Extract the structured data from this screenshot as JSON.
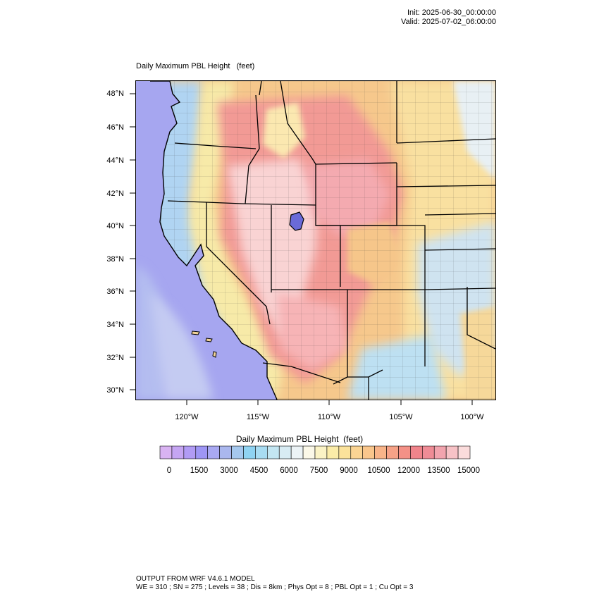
{
  "header": {
    "init": "Init: 2025-06-30_00:00:00",
    "valid": "Valid: 2025-07-02_06:00:00"
  },
  "map": {
    "title": "Daily Maximum PBL Height   (feet)",
    "lat_labels": [
      "48°N",
      "46°N",
      "44°N",
      "42°N",
      "40°N",
      "38°N",
      "36°N",
      "34°N",
      "32°N",
      "30°N"
    ],
    "lon_labels": [
      "120°W",
      "115°W",
      "110°W",
      "105°W",
      "100°W"
    ],
    "lat_range": [
      29.5,
      48.8
    ],
    "lon_range": [
      -123.7,
      -98.4
    ]
  },
  "colorbar": {
    "title": "Daily Maximum PBL Height  (feet)",
    "tick_labels": [
      "0",
      "1500",
      "3000",
      "4500",
      "6000",
      "7500",
      "9000",
      "10500",
      "12000",
      "13500",
      "15000"
    ],
    "colors": [
      "#d9b3f2",
      "#c5a5f2",
      "#b19bf5",
      "#9e96f5",
      "#a9a9f2",
      "#aab7ee",
      "#a5c8ee",
      "#8fd3f2",
      "#a8dcf2",
      "#c3e6f2",
      "#d8ecf4",
      "#ecf3f6",
      "#fbf8e8",
      "#fbf3c5",
      "#fbeca8",
      "#fbe29b",
      "#fbd493",
      "#f9c68c",
      "#f8b489",
      "#f6a287",
      "#f49187",
      "#f0848b",
      "#ef8c96",
      "#f2a4ae",
      "#f7c2c6",
      "#fbdcdc"
    ]
  },
  "footer": {
    "line1": "OUTPUT FROM WRF V4.6.1 MODEL",
    "line2": "WE = 310 ; SN = 275 ; Levels = 38 ; Dis = 8km ; Phys Opt = 8 ; PBL Opt = 1 ; Cu Opt = 3"
  }
}
